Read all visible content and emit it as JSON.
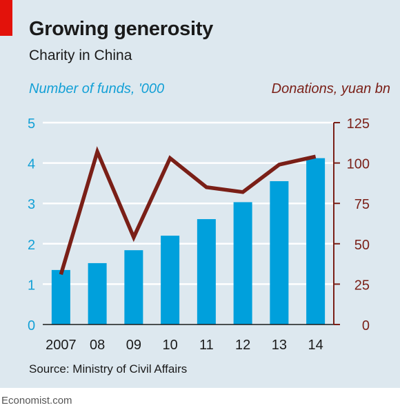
{
  "header": {
    "title": "Growing generosity",
    "subtitle": "Charity in China"
  },
  "source": "Source: Ministry of Civil Affairs",
  "footer": "Economist.com",
  "colors": {
    "bars": "#00a0dc",
    "line": "#7a1f17",
    "left_axis_text": "#13a0d6",
    "right_axis_text": "#7a1f17",
    "background": "#dde8ef",
    "brand_red": "#e3120b"
  },
  "chart_data": {
    "type": "bar",
    "title": "Growing generosity",
    "subtitle": "Charity in China",
    "categories": [
      "2007",
      "08",
      "09",
      "10",
      "11",
      "12",
      "13",
      "14"
    ],
    "series": [
      {
        "name": "Number of funds, '000",
        "type": "bar",
        "axis": "left",
        "values": [
          1.35,
          1.52,
          1.84,
          2.2,
          2.61,
          3.03,
          3.55,
          4.12
        ]
      },
      {
        "name": "Donations, yuan bn",
        "type": "line",
        "axis": "right",
        "values": [
          31,
          107,
          54,
          103,
          85,
          82,
          99,
          104
        ]
      }
    ],
    "y_left": {
      "label": "Number of funds, '000",
      "range": [
        0,
        5
      ],
      "ticks": [
        "0",
        "1",
        "2",
        "3",
        "4",
        "5"
      ]
    },
    "y_right": {
      "label": "Donations, yuan bn",
      "range": [
        0,
        125
      ],
      "ticks": [
        "0",
        "25",
        "50",
        "75",
        "100",
        "125"
      ]
    },
    "grid": true,
    "legend": "none"
  }
}
